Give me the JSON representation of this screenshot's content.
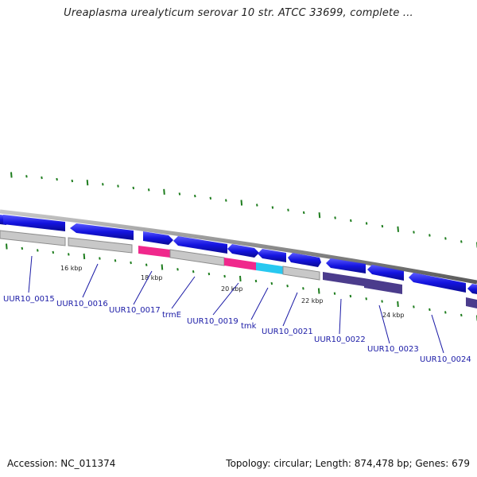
{
  "title": "Ureaplasma urealyticum serovar 10 str. ATCC 33699, complete ...",
  "footer": {
    "accession": "Accession: NC_011374",
    "summary": "Topology: circular; Length: 874,478 bp; Genes: 679"
  },
  "colors": {
    "backbone": "#8c8c8c",
    "forward_gene": "#1414e0",
    "reverse_gene": "#1414e0",
    "cds_generic": "#c8c8c8",
    "cds_magenta": "#f0288c",
    "cds_cyan": "#28c8f0",
    "cds_purple": "#4b3c8c",
    "tick": "#1e7d1e",
    "label": "#1a1aa6"
  },
  "kbp_ticks": [
    "16 kbp",
    "18 kbp",
    "20 kbp",
    "22 kbp",
    "24 kbp"
  ],
  "genes": [
    {
      "label": "UUR10_0015"
    },
    {
      "label": "UUR10_0016"
    },
    {
      "label": "UUR10_0017"
    },
    {
      "label": "trmE"
    },
    {
      "label": "UUR10_0019"
    },
    {
      "label": "tmk"
    },
    {
      "label": "UUR10_0021"
    },
    {
      "label": "UUR10_0022"
    },
    {
      "label": "UUR10_0023"
    },
    {
      "label": "UUR10_0024"
    }
  ]
}
